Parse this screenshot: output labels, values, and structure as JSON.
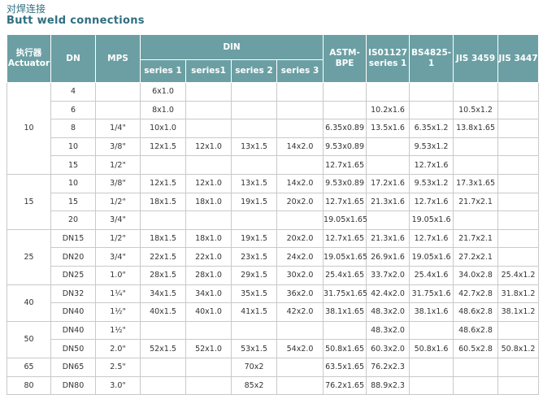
{
  "header": {
    "title_cn": "对焊连接",
    "title_en": "Butt weld connections"
  },
  "table": {
    "columns": {
      "actuator": "执行器 Actuator",
      "dn": "DN",
      "mps": "MPS",
      "din": "DIN",
      "astm": "ASTM-BPE",
      "iso": "IS01127 series 1",
      "bs": "BS4825-1",
      "jis3459": "JIS 3459",
      "jis3447": "JIS 3447"
    },
    "din_sub": [
      "series 1",
      "series1",
      "series 2",
      "series 3"
    ],
    "groups": [
      {
        "actuator": "10",
        "rows": [
          [
            "4",
            null,
            "6x1.0",
            null,
            null,
            null,
            null,
            null,
            null,
            null,
            null
          ],
          [
            "6",
            null,
            "8x1.0",
            null,
            null,
            null,
            null,
            "10.2x1.6",
            null,
            "10.5x1.2",
            null
          ],
          [
            "8",
            "1/4\"",
            "10x1.0",
            null,
            null,
            null,
            "6.35x0.89",
            "13.5x1.6",
            "6.35x1.2",
            "13.8x1.65",
            null
          ],
          [
            "10",
            "3/8\"",
            "12x1.5",
            "12x1.0",
            "13x1.5",
            "14x2.0",
            "9.53x0.89",
            null,
            "9.53x1.2",
            null,
            null
          ],
          [
            "15",
            "1/2\"",
            null,
            null,
            null,
            null,
            "12.7x1.65",
            null,
            "12.7x1.6",
            null,
            null
          ]
        ]
      },
      {
        "actuator": "15",
        "rows": [
          [
            "10",
            "3/8\"",
            "12x1.5",
            "12x1.0",
            "13x1.5",
            "14x2.0",
            "9.53x0.89",
            "17.2x1.6",
            "9.53x1.2",
            "17.3x1.65",
            null
          ],
          [
            "15",
            "1/2\"",
            "18x1.5",
            "18x1.0",
            "19x1.5",
            "20x2.0",
            "12.7x1.65",
            "21.3x1.6",
            "12.7x1.6",
            "21.7x2.1",
            null
          ],
          [
            "20",
            "3/4\"",
            null,
            null,
            null,
            null,
            "19.05x1.65",
            null,
            "19.05x1.6",
            null,
            null
          ]
        ]
      },
      {
        "actuator": "25",
        "rows": [
          [
            "DN15",
            "1/2\"",
            "18x1.5",
            "18x1.0",
            "19x1.5",
            "20x2.0",
            "12.7x1.65",
            "21.3x1.6",
            "12.7x1.6",
            "21.7x2.1",
            null
          ],
          [
            "DN20",
            "3/4\"",
            "22x1.5",
            "22x1.0",
            "23x1.5",
            "24x2.0",
            "19.05x1.65",
            "26.9x1.6",
            "19.05x1.6",
            "27.2x2.1",
            null
          ],
          [
            "DN25",
            "1.0\"",
            "28x1.5",
            "28x1.0",
            "29x1.5",
            "30x2.0",
            "25.4x1.65",
            "33.7x2.0",
            "25.4x1.6",
            "34.0x2.8",
            "25.4x1.2"
          ]
        ]
      },
      {
        "actuator": "40",
        "rows": [
          [
            "DN32",
            "1¼\"",
            "34x1.5",
            "34x1.0",
            "35x1.5",
            "36x2.0",
            "31.75x1.65",
            "42.4x2.0",
            "31.75x1.6",
            "42.7x2.8",
            "31.8x1.2"
          ],
          [
            "DN40",
            "1½\"",
            "40x1.5",
            "40x1.0",
            "41x1.5",
            "42x2.0",
            "38.1x1.65",
            "48.3x2.0",
            "38.1x1.6",
            "48.6x2.8",
            "38.1x1.2"
          ]
        ]
      },
      {
        "actuator": "50",
        "rows": [
          [
            "DN40",
            "1½\"",
            null,
            null,
            null,
            null,
            null,
            "48.3x2.0",
            null,
            "48.6x2.8",
            null
          ],
          [
            "DN50",
            "2.0\"",
            "52x1.5",
            "52x1.0",
            "53x1.5",
            "54x2.0",
            "50.8x1.65",
            "60.3x2.0",
            "50.8x1.6",
            "60.5x2.8",
            "50.8x1.2"
          ]
        ]
      },
      {
        "actuator": "65",
        "rows": [
          [
            "DN65",
            "2.5\"",
            null,
            null,
            "70x2",
            null,
            "63.5x1.65",
            "76.2x2.3",
            null,
            null,
            null
          ]
        ]
      },
      {
        "actuator": "80",
        "rows": [
          [
            "DN80",
            "3.0\"",
            null,
            null,
            "85x2",
            null,
            "76.2x1.65",
            "88.9x2.3",
            null,
            null,
            null
          ]
        ]
      }
    ]
  }
}
